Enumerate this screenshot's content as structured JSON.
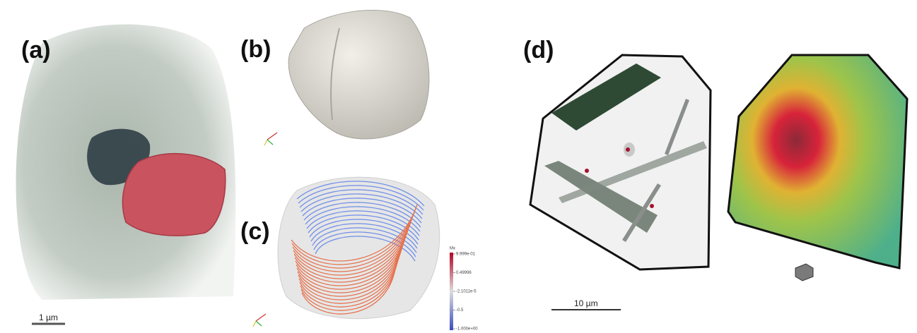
{
  "panels": {
    "a": {
      "label": "(a)",
      "scale_bar": "1 µm"
    },
    "b": {
      "label": "(b)"
    },
    "c": {
      "label": "(c)",
      "colorbar": {
        "title": "Mx",
        "ticks": [
          "9.999e-01",
          "0.49996",
          "-2.1011e-5",
          "-0.5",
          "-1.000e+00"
        ]
      }
    },
    "d": {
      "label": "(d)",
      "scale_bar": "10 µm"
    }
  }
}
